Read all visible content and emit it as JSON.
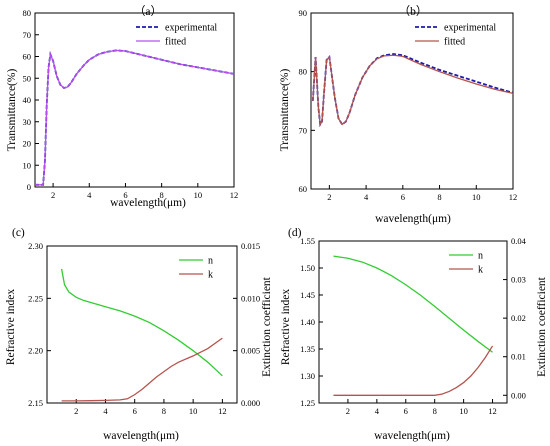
{
  "chart_data": [
    {
      "type": "line",
      "panel_label": "（a）",
      "xlabel": "wavelength(μm)",
      "ylabel": "Transmittance(%)",
      "xlim": [
        1,
        12
      ],
      "ylim": [
        0,
        80
      ],
      "xticks": [
        2,
        4,
        6,
        8,
        10,
        12
      ],
      "yticks": [
        0,
        10,
        20,
        30,
        40,
        50,
        60,
        70,
        80
      ],
      "legend_position": "top-right",
      "series": [
        {
          "name": "experimental",
          "color": "#1c1ca8",
          "dash": true,
          "x": [
            1.0,
            1.45,
            1.55,
            1.65,
            1.75,
            1.85,
            2.0,
            2.2,
            2.4,
            2.6,
            2.8,
            3.0,
            3.3,
            3.7,
            4.0,
            4.5,
            5.0,
            5.5,
            6.0,
            7.0,
            8.0,
            9.0,
            10.0,
            11.0,
            12.0
          ],
          "y": [
            1,
            1,
            12,
            38,
            55,
            61,
            58,
            51,
            47,
            45.5,
            46,
            48,
            52,
            56,
            58.5,
            61,
            62.2,
            62.8,
            62.5,
            60.5,
            58.5,
            56.5,
            55,
            53.5,
            52
          ]
        },
        {
          "name": "fitted",
          "color": "#b84ff0",
          "dash": false,
          "x": [
            1.0,
            1.45,
            1.55,
            1.65,
            1.75,
            1.85,
            2.0,
            2.2,
            2.4,
            2.6,
            2.8,
            3.0,
            3.3,
            3.7,
            4.0,
            4.5,
            5.0,
            5.5,
            6.0,
            7.0,
            8.0,
            9.0,
            10.0,
            11.0,
            12.0
          ],
          "y": [
            1,
            1,
            12,
            38,
            55,
            61,
            58,
            51,
            47,
            45.5,
            46,
            48,
            52,
            56,
            58.5,
            61,
            62.2,
            62.8,
            62.5,
            60.5,
            58.5,
            56.5,
            55,
            53.5,
            52
          ]
        }
      ]
    },
    {
      "type": "line",
      "panel_label": "（b）",
      "xlabel": "wavelength(μm)",
      "ylabel": "Transmittance(%)",
      "xlim": [
        1,
        12
      ],
      "ylim": [
        60,
        90
      ],
      "xticks": [
        2,
        4,
        6,
        8,
        10,
        12
      ],
      "yticks": [
        60,
        70,
        80,
        90
      ],
      "legend_position": "top-right",
      "series": [
        {
          "name": "experimental",
          "color": "#1c1ca8",
          "dash": true,
          "x": [
            1.1,
            1.25,
            1.4,
            1.5,
            1.6,
            1.7,
            1.85,
            2.0,
            2.15,
            2.3,
            2.5,
            2.7,
            2.9,
            3.1,
            3.4,
            3.8,
            4.2,
            4.6,
            5.0,
            5.5,
            6.0,
            7.0,
            8.0,
            9.0,
            10.0,
            11.0,
            12.0
          ],
          "y": [
            75,
            82.5,
            74,
            71,
            71.5,
            76,
            82,
            82.5,
            79,
            75.5,
            72,
            71,
            71.5,
            73,
            76,
            79,
            81,
            82.3,
            82.8,
            83,
            82.8,
            81.5,
            80.3,
            79.3,
            78.3,
            77.3,
            76.4
          ]
        },
        {
          "name": "fitted",
          "color": "#b5544f",
          "dash": false,
          "x": [
            1.1,
            1.25,
            1.4,
            1.5,
            1.6,
            1.7,
            1.85,
            2.0,
            2.15,
            2.3,
            2.5,
            2.7,
            2.9,
            3.1,
            3.4,
            3.8,
            4.2,
            4.6,
            5.0,
            5.5,
            6.0,
            7.0,
            8.0,
            9.0,
            10.0,
            11.0,
            12.0
          ],
          "y": [
            75,
            82.5,
            74,
            71,
            71.5,
            76,
            82,
            82.5,
            79,
            75.5,
            72,
            71,
            71.5,
            73,
            76,
            79,
            81,
            82.2,
            82.7,
            82.8,
            82.6,
            81.2,
            80,
            78.9,
            77.9,
            77,
            76.3
          ]
        }
      ]
    },
    {
      "type": "line",
      "panel_label": "(c)",
      "xlabel": "wavelength(μm)",
      "ylabel": "Refractive index",
      "ylabel_right": "Extinction coefficient",
      "xlim": [
        0,
        13
      ],
      "ylim": [
        2.15,
        2.3
      ],
      "ylim_right": [
        0,
        0.015
      ],
      "xticks": [
        2,
        4,
        6,
        8,
        10,
        12
      ],
      "yticks": [
        "2.15",
        "2.20",
        "2.25",
        "2.30"
      ],
      "yticks_right": [
        "0.000",
        "0.005",
        "0.010",
        "0.015"
      ],
      "legend_position": "top-right",
      "series": [
        {
          "name": "n",
          "axis": "left",
          "color": "#33cc33",
          "x": [
            1.0,
            1.2,
            1.5,
            2.0,
            2.5,
            3.0,
            4.0,
            5.0,
            6.0,
            7.0,
            8.0,
            9.0,
            10.0,
            11.0,
            12.0
          ],
          "y": [
            2.278,
            2.263,
            2.256,
            2.251,
            2.248,
            2.246,
            2.242,
            2.238,
            2.233,
            2.227,
            2.219,
            2.21,
            2.2,
            2.189,
            2.176
          ]
        },
        {
          "name": "k",
          "axis": "right",
          "color": "#b5544f",
          "x": [
            1.0,
            2.0,
            3.0,
            4.0,
            5.0,
            5.5,
            6.0,
            6.5,
            7.0,
            7.5,
            8.0,
            8.5,
            9.0,
            10.0,
            11.0,
            12.0
          ],
          "y": [
            0.0002,
            0.0002,
            0.00022,
            0.00025,
            0.0003,
            0.0004,
            0.0008,
            0.0013,
            0.0019,
            0.0025,
            0.003,
            0.0035,
            0.0039,
            0.0045,
            0.0052,
            0.0062
          ]
        }
      ]
    },
    {
      "type": "line",
      "panel_label": "(d)",
      "xlabel": "wavelength(μm)",
      "ylabel": "Refractive index",
      "ylabel_right": "Extinction coefficient",
      "xlim": [
        0,
        13
      ],
      "ylim": [
        1.25,
        1.55
      ],
      "ylim_right": [
        -0.002,
        0.04
      ],
      "xticks": [
        2,
        4,
        6,
        8,
        10,
        12
      ],
      "yticks": [
        "1.25",
        "1.30",
        "1.35",
        "1.40",
        "1.45",
        "1.50",
        "1.55"
      ],
      "yticks_right": [
        "0.00",
        "0.01",
        "0.02",
        "0.03",
        "0.04"
      ],
      "legend_position": "top-right",
      "series": [
        {
          "name": "n",
          "axis": "left",
          "color": "#33cc33",
          "x": [
            1.0,
            2.0,
            3.0,
            4.0,
            5.0,
            6.0,
            7.0,
            8.0,
            9.0,
            10.0,
            11.0,
            12.0
          ],
          "y": [
            1.522,
            1.518,
            1.511,
            1.5,
            1.486,
            1.469,
            1.45,
            1.429,
            1.407,
            1.385,
            1.364,
            1.344
          ]
        },
        {
          "name": "k",
          "axis": "right",
          "color": "#b5544f",
          "x": [
            1.0,
            2.0,
            4.0,
            6.0,
            8.0,
            8.5,
            9.0,
            9.5,
            10.0,
            10.5,
            11.0,
            11.5,
            12.0
          ],
          "y": [
            0,
            0,
            0,
            0,
            0,
            0.0003,
            0.001,
            0.002,
            0.0033,
            0.005,
            0.0072,
            0.0098,
            0.0128
          ]
        }
      ]
    }
  ]
}
